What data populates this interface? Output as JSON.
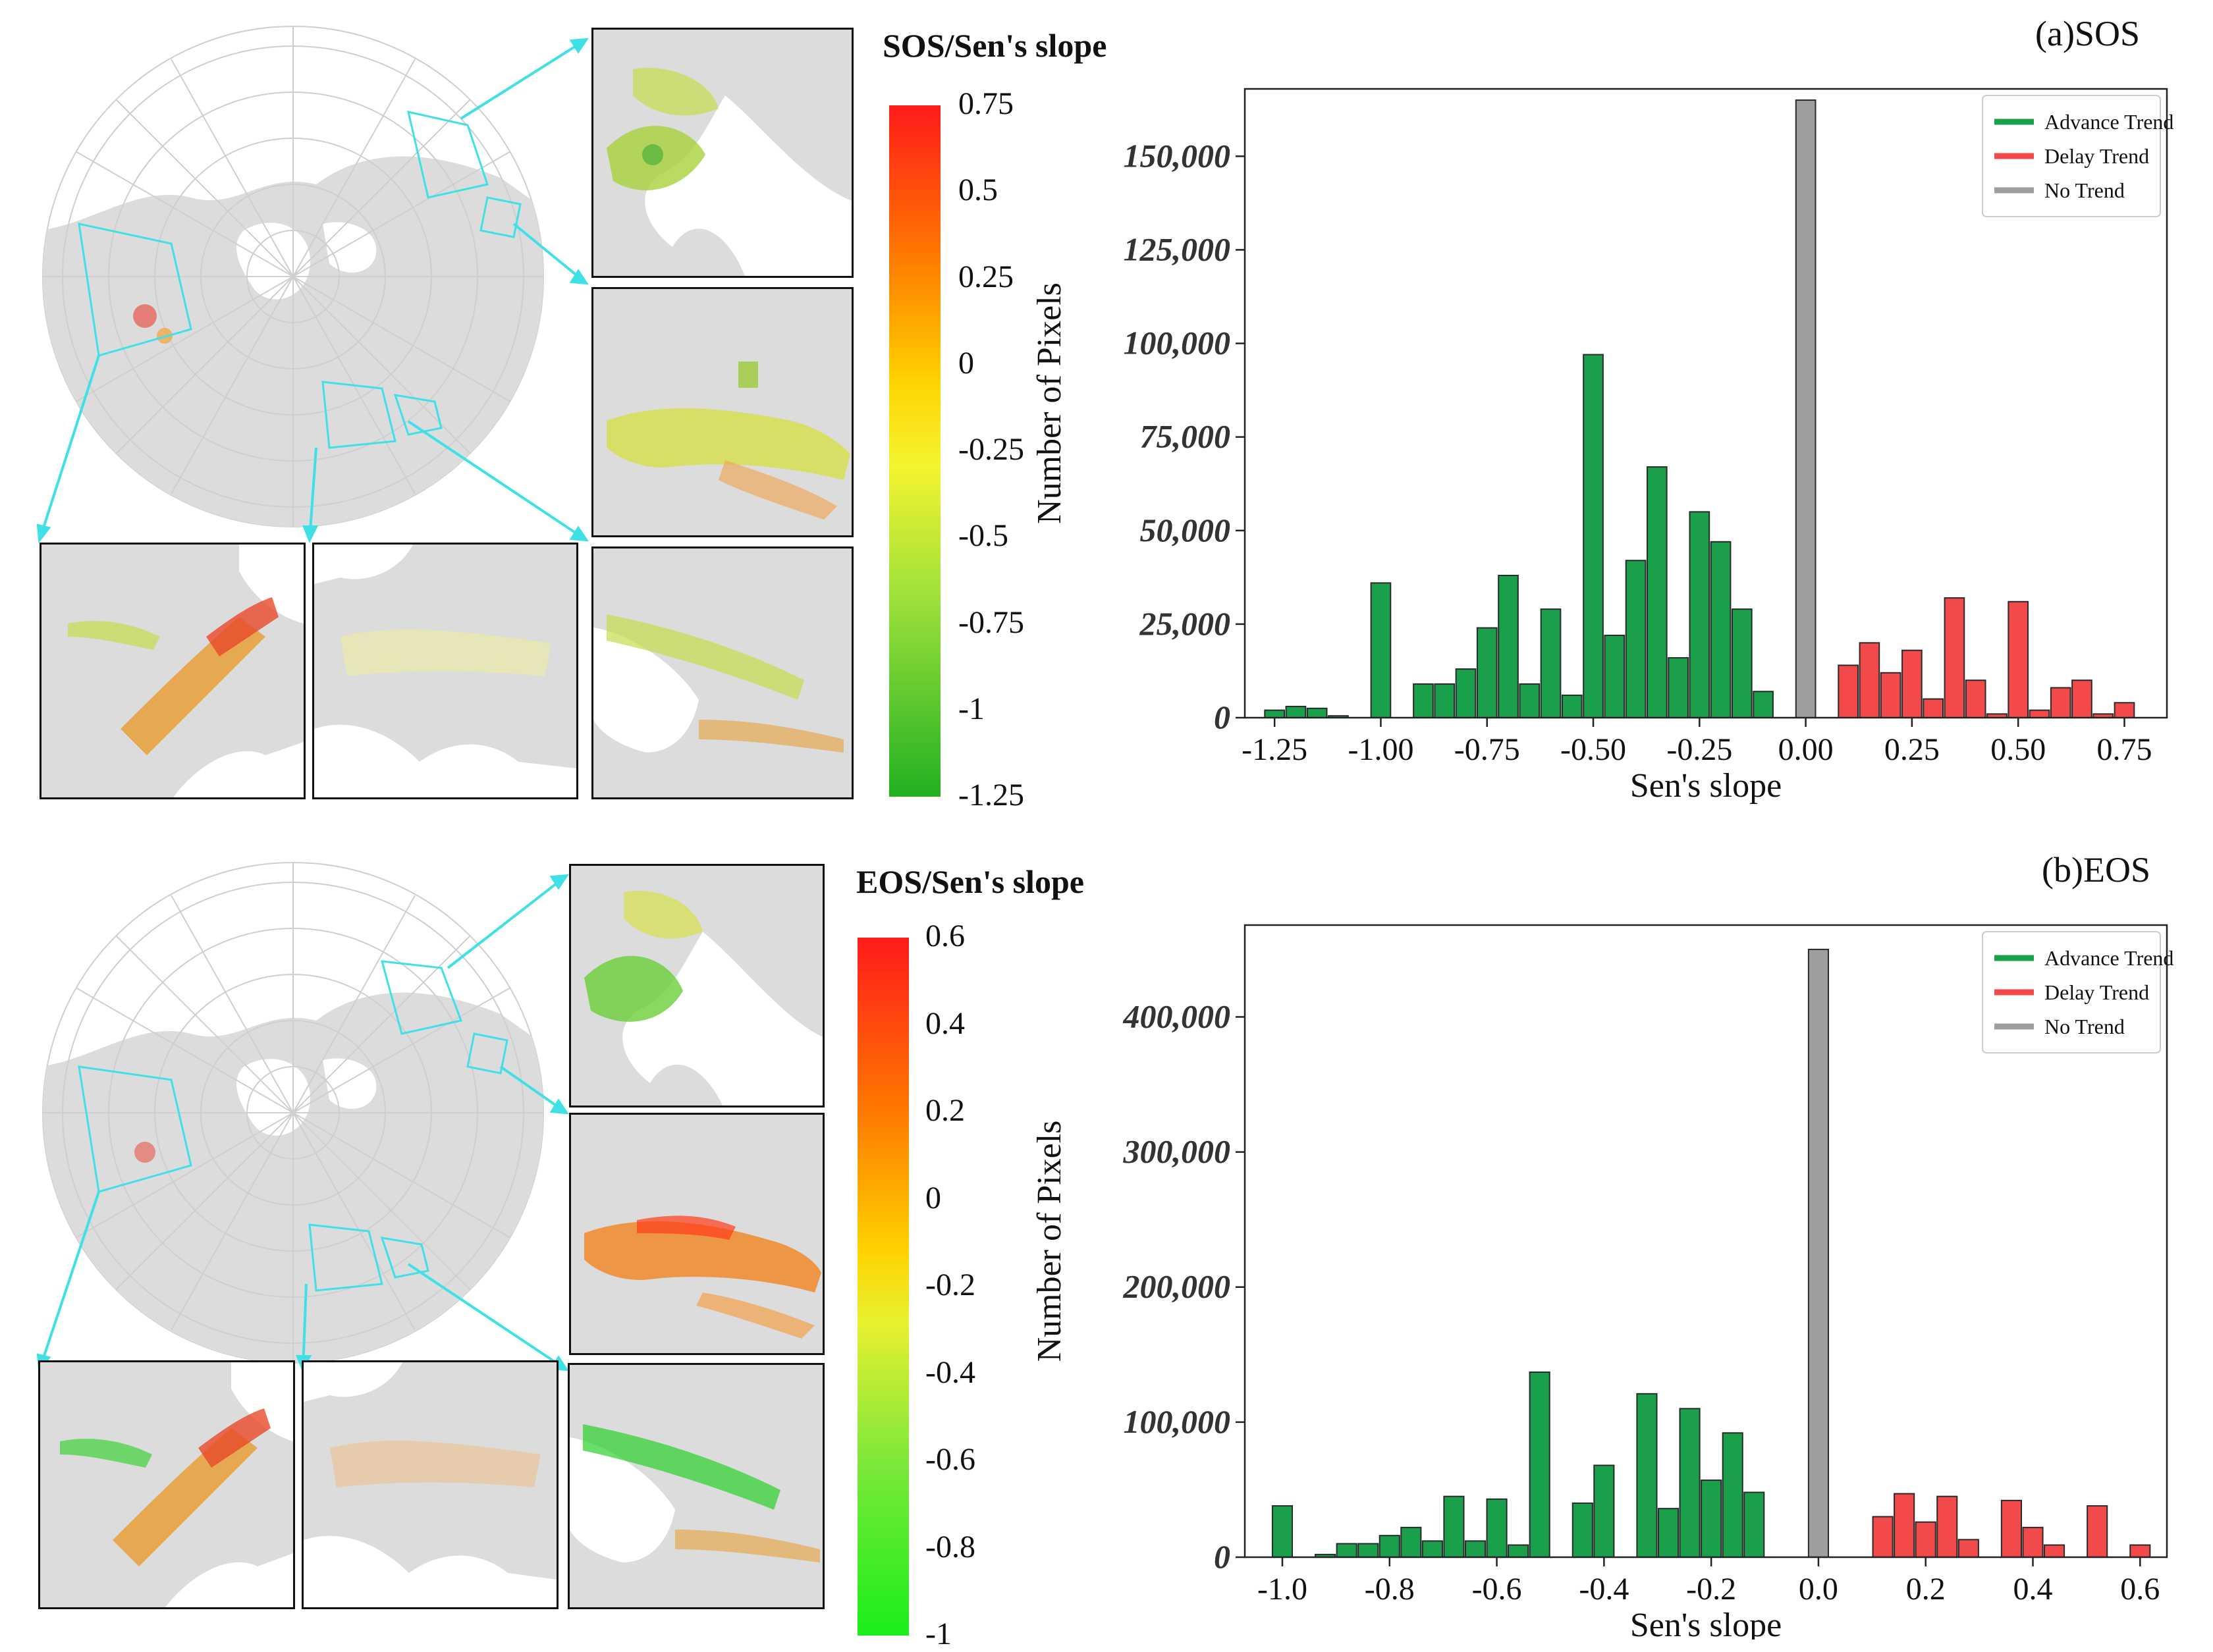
{
  "colors": {
    "advance": "#1aa04a",
    "delay": "#f24a4a",
    "none": "#9e9e9e",
    "land": "#dcdcdc",
    "highlight": "#3fe0e6"
  },
  "top": {
    "colorbar_title": "SOS/Sen's slope",
    "colorbar_ticks": [
      "0.75",
      "0.5",
      "0.25",
      "0",
      "-0.25",
      "-0.5",
      "-0.75",
      "-1",
      "-1.25"
    ],
    "panel_label": "(a)SOS"
  },
  "bottom": {
    "colorbar_title": "EOS/Sen's slope",
    "colorbar_ticks": [
      "0.6",
      "0.4",
      "0.2",
      "0",
      "-0.2",
      "-0.4",
      "-0.6",
      "-0.8",
      "-1"
    ],
    "panel_label": "(b)EOS"
  },
  "chart_data": [
    {
      "type": "bar",
      "title": "(a)SOS",
      "xlabel": "Sen's slope",
      "ylabel": "Number of Pixels",
      "xlim": [
        -1.32,
        0.85
      ],
      "ylim": [
        0,
        168000
      ],
      "xticks": [
        -1.25,
        -1.0,
        -0.75,
        -0.5,
        -0.25,
        0.0,
        0.25,
        0.5,
        0.75
      ],
      "xtick_labels": [
        "-1.25",
        "-1.00",
        "-0.75",
        "-0.50",
        "-0.25",
        "0.00",
        "0.25",
        "0.50",
        "0.75"
      ],
      "yticks": [
        0,
        25000,
        50000,
        75000,
        100000,
        125000,
        150000
      ],
      "ytick_labels": [
        "0",
        "25,000",
        "50,000",
        "75,000",
        "100,000",
        "125,000",
        "150,000"
      ],
      "bar_width": 0.046,
      "legend": [
        "Advance Trend",
        "Delay Trend",
        "No Trend"
      ],
      "legend_position": "top-right",
      "series": [
        {
          "name": "Advance Trend",
          "x": [
            -1.25,
            -1.2,
            -1.15,
            -1.1,
            -1.0,
            -0.9,
            -0.85,
            -0.8,
            -0.75,
            -0.7,
            -0.65,
            -0.6,
            -0.55,
            -0.5,
            -0.45,
            -0.4,
            -0.35,
            -0.3,
            -0.25,
            -0.2,
            -0.15,
            -0.1
          ],
          "values": [
            2000,
            3000,
            2500,
            500,
            36000,
            9000,
            9000,
            13000,
            24000,
            38000,
            9000,
            29000,
            6000,
            97000,
            22000,
            42000,
            67000,
            16000,
            55000,
            47000,
            29000,
            7000
          ]
        },
        {
          "name": "No Trend",
          "x": [
            0.0
          ],
          "values": [
            165000
          ]
        },
        {
          "name": "Delay Trend",
          "x": [
            0.1,
            0.15,
            0.2,
            0.25,
            0.3,
            0.35,
            0.4,
            0.45,
            0.5,
            0.55,
            0.6,
            0.65,
            0.7,
            0.75
          ],
          "values": [
            14000,
            20000,
            12000,
            18000,
            5000,
            32000,
            10000,
            1000,
            31000,
            2000,
            8000,
            10000,
            1000,
            4000
          ]
        }
      ]
    },
    {
      "type": "bar",
      "title": "(b)EOS",
      "xlabel": "Sen's slope",
      "ylabel": "Number of Pixels",
      "xlim": [
        -1.07,
        0.65
      ],
      "ylim": [
        0,
        468000
      ],
      "xticks": [
        -1.0,
        -0.8,
        -0.6,
        -0.4,
        -0.2,
        0.0,
        0.2,
        0.4,
        0.6
      ],
      "xtick_labels": [
        "-1.0",
        "-0.8",
        "-0.6",
        "-0.4",
        "-0.2",
        "0.0",
        "0.2",
        "0.4",
        "0.6"
      ],
      "yticks": [
        0,
        100000,
        200000,
        300000,
        400000
      ],
      "ytick_labels": [
        "0",
        "100,000",
        "200,000",
        "300,000",
        "400,000"
      ],
      "bar_width": 0.037,
      "legend": [
        "Advance Trend",
        "Delay Trend",
        "No Trend"
      ],
      "legend_position": "top-right",
      "series": [
        {
          "name": "Advance Trend",
          "x": [
            -1.0,
            -0.92,
            -0.88,
            -0.84,
            -0.8,
            -0.76,
            -0.72,
            -0.68,
            -0.64,
            -0.6,
            -0.56,
            -0.52,
            -0.44,
            -0.4,
            -0.32,
            -0.28,
            -0.24,
            -0.2,
            -0.16,
            -0.12
          ],
          "values": [
            38000,
            2000,
            10000,
            10000,
            16000,
            22000,
            12000,
            45000,
            12000,
            43000,
            9000,
            137000,
            40000,
            68000,
            121000,
            36000,
            110000,
            57000,
            92000,
            48000
          ]
        },
        {
          "name": "No Trend",
          "x": [
            0.0
          ],
          "values": [
            450000
          ]
        },
        {
          "name": "Delay Trend",
          "x": [
            0.12,
            0.16,
            0.2,
            0.24,
            0.28,
            0.36,
            0.4,
            0.44,
            0.52,
            0.6
          ],
          "values": [
            30000,
            47000,
            26000,
            45000,
            13000,
            42000,
            22000,
            9000,
            38000,
            9000
          ]
        }
      ]
    }
  ]
}
